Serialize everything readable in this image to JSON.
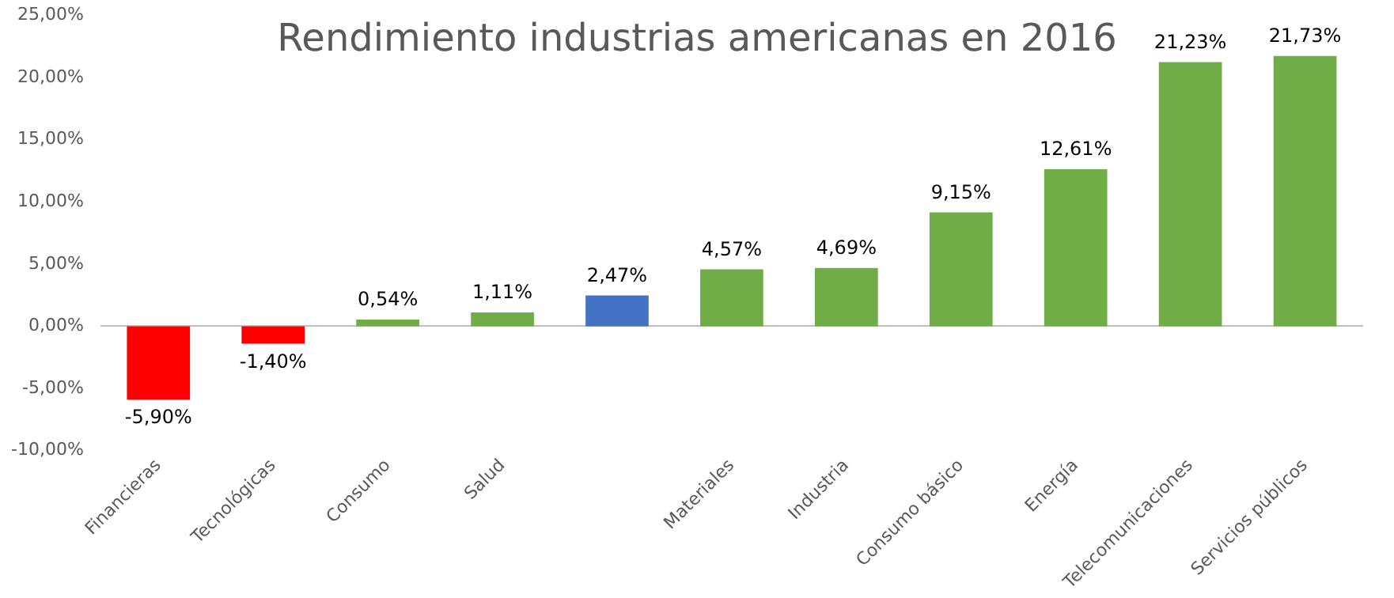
{
  "chart_data": {
    "type": "bar",
    "title": "Rendimiento industrias americanas en 2016",
    "categories": [
      "Financieras",
      "Tecnológicas",
      "Consumo",
      "Salud",
      null,
      "Materiales",
      "Industria",
      "Consumo básico",
      "Energía",
      "Telecomunicaciones",
      "Servicios públicos"
    ],
    "values": [
      -5.9,
      -1.4,
      0.54,
      1.11,
      2.47,
      4.57,
      4.69,
      9.15,
      12.61,
      21.23,
      21.73
    ],
    "colors": [
      "#ff0000",
      "#ff0000",
      "#70ad47",
      "#70ad47",
      "#4472c4",
      "#70ad47",
      "#70ad47",
      "#70ad47",
      "#70ad47",
      "#70ad47",
      "#70ad47"
    ],
    "value_labels": [
      "-5,90%",
      "-1,40%",
      "0,54%",
      "1,11%",
      "2,47%",
      "4,57%",
      "4,69%",
      "9,15%",
      "12,61%",
      "21,23%",
      "21,73%"
    ],
    "ylim": [
      -10,
      25
    ],
    "yticks": [
      {
        "value": -10,
        "label": "-10,00%"
      },
      {
        "value": -5,
        "label": "-5,00%"
      },
      {
        "value": 0,
        "label": "0,00%"
      },
      {
        "value": 5,
        "label": "5,00%"
      },
      {
        "value": 10,
        "label": "10,00%"
      },
      {
        "value": 15,
        "label": "15,00%"
      },
      {
        "value": 20,
        "label": "20,00%"
      },
      {
        "value": 25,
        "label": "25,00%"
      }
    ],
    "legend": false
  }
}
